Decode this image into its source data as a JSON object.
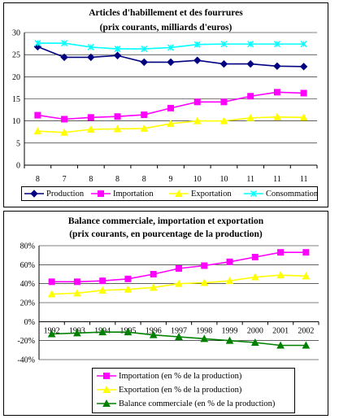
{
  "chart_data": [
    {
      "type": "line",
      "title": "Articles d'habillement et des fourrures",
      "subtitle": "(prix courants, milliards d'euros)",
      "categories": [
        "8",
        "7",
        "8",
        "8",
        "8",
        "9",
        "10",
        "10",
        "11",
        "11",
        "11"
      ],
      "ylim": [
        0,
        30
      ],
      "yticks": [
        0,
        5,
        10,
        15,
        20,
        25,
        30
      ],
      "grid": true,
      "legend_position": "bottom",
      "series": [
        {
          "name": "Production",
          "color": "#000080",
          "marker": "diamond",
          "values": [
            26.8,
            24.4,
            24.4,
            24.8,
            23.3,
            23.3,
            23.7,
            22.9,
            22.9,
            22.4,
            22.3
          ]
        },
        {
          "name": "Importation",
          "color": "#ff00ff",
          "marker": "square",
          "values": [
            11.3,
            10.4,
            10.8,
            11.0,
            11.4,
            12.9,
            14.3,
            14.3,
            15.6,
            16.5,
            16.3
          ]
        },
        {
          "name": "Exportation",
          "color": "#ffff00",
          "marker": "triangle",
          "values": [
            7.7,
            7.4,
            8.1,
            8.2,
            8.3,
            9.4,
            10.0,
            10.0,
            10.7,
            10.9,
            10.8
          ]
        },
        {
          "name": "Consommation",
          "color": "#00ffff",
          "marker": "x",
          "values": [
            27.6,
            27.6,
            26.7,
            26.3,
            26.3,
            26.6,
            27.3,
            27.4,
            27.4,
            27.4,
            27.4
          ]
        }
      ]
    },
    {
      "type": "line",
      "title": "Balance commerciale, importation et exportation",
      "subtitle": "(prix courants, en pourcentage de la production)",
      "categories": [
        "1992",
        "1993",
        "1994",
        "1995",
        "1996",
        "1997",
        "1998",
        "1999",
        "2000",
        "2001",
        "2002"
      ],
      "ylim": [
        -40,
        80
      ],
      "yticks": [
        -40,
        -20,
        0,
        20,
        40,
        60,
        80
      ],
      "ytick_labels": [
        "-40%",
        "-20%",
        "0%",
        "20%",
        "40%",
        "60%",
        "80%"
      ],
      "grid": true,
      "legend_position": "bottom",
      "series": [
        {
          "name": "Importation (en % de la production)",
          "color": "#ff00ff",
          "marker": "square",
          "values": [
            42,
            42,
            43,
            45,
            50,
            56,
            59,
            63,
            68,
            73,
            73
          ]
        },
        {
          "name": "Exportation (en % de la production)",
          "color": "#ffff00",
          "marker": "triangle",
          "values": [
            29,
            30,
            33,
            34,
            36,
            40,
            41,
            43,
            47,
            49,
            48
          ]
        },
        {
          "name": "Balance commerciale (en % de la production)",
          "color": "#008000",
          "marker": "triangle",
          "values": [
            -13,
            -12,
            -11,
            -11,
            -14,
            -16,
            -18,
            -20,
            -22,
            -25,
            -25
          ]
        }
      ]
    }
  ]
}
